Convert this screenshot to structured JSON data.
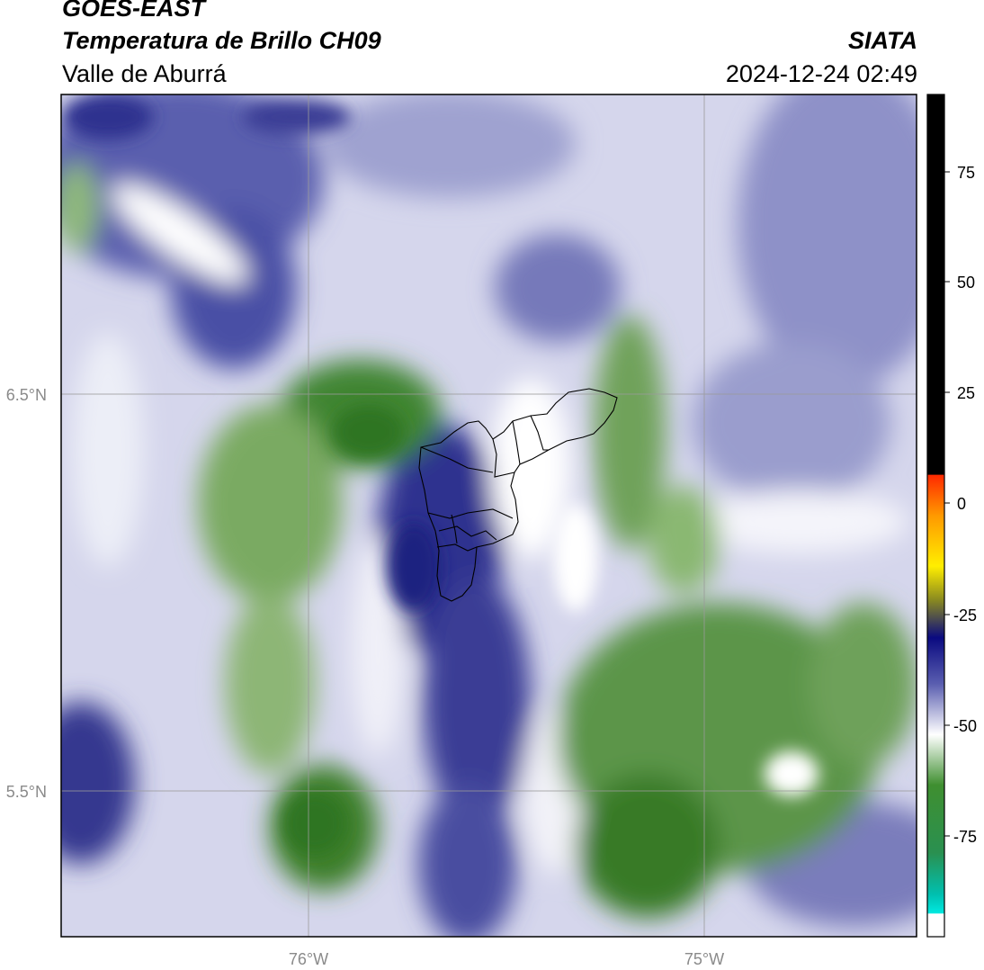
{
  "header": {
    "satellite": "GOES-EAST",
    "product": "Temperatura de Brillo CH09",
    "region": "Valle de Aburrá",
    "agency": "SIATA",
    "datetime": "2024-12-24 02:49"
  },
  "map": {
    "lat_labels": [
      "6.5°N",
      "5.5°N"
    ],
    "lon_labels": [
      "76°W",
      "75°W"
    ],
    "colors": {
      "deep_blue": "#2b2f8f",
      "mid_blue": "#6a6fb4",
      "light_blue": "#c9cbe6",
      "white": "#ffffff",
      "light_green": "#bcd6ad",
      "mid_green": "#74a45c",
      "deep_green": "#3b7d2a",
      "grid": "#9a9a9a",
      "boundary": "#000000"
    }
  },
  "colorbar": {
    "ticks": [
      "75",
      "50",
      "25",
      "0",
      "-25",
      "-50",
      "-75"
    ],
    "colors": {
      "black": "#000000",
      "red": "#ff2a00",
      "orange": "#ff9900",
      "yellow": "#ffee00",
      "olive": "#8a8a20",
      "navy": "#0a0a80",
      "blue": "#5a5eb0",
      "white": "#ffffff",
      "green": "#3f8f30",
      "cyan": "#00e0d0"
    }
  }
}
